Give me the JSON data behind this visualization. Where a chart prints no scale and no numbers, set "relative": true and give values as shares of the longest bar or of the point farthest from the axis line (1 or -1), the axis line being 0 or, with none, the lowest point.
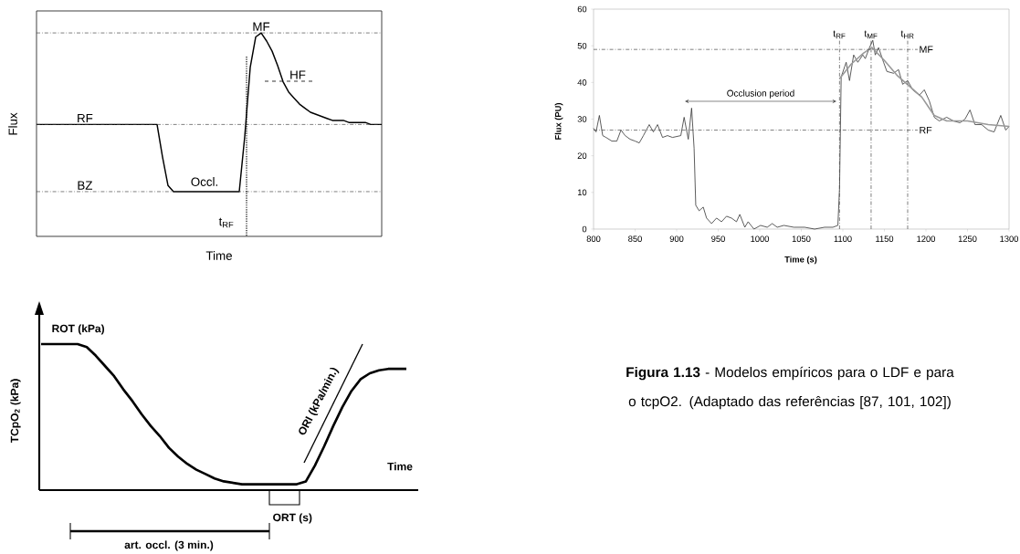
{
  "chart_data": [
    {
      "type": "line",
      "relative": true,
      "xlabel": "Time",
      "ylabel": "Flux",
      "categories": [
        null,
        null,
        null,
        null,
        null,
        null,
        null,
        null,
        null,
        null,
        null,
        null,
        null,
        null,
        null,
        null,
        null,
        null,
        null,
        null,
        null,
        null,
        null,
        null,
        null,
        null,
        null,
        null,
        null,
        null,
        null,
        null,
        null,
        null,
        null,
        null,
        null,
        null,
        null,
        null,
        null,
        null,
        null,
        null,
        null,
        null,
        null,
        null,
        null,
        null,
        null,
        null,
        null,
        null,
        null,
        null,
        null,
        null,
        null,
        null,
        null,
        null,
        null,
        null
      ],
      "series": [
        {
          "color": "#000000",
          "values": [
            0.55,
            0.55,
            0.55,
            0.55,
            0.55,
            0.55,
            0.55,
            0.55,
            0.55,
            0.55,
            0.55,
            0.55,
            0.55,
            0.55,
            0.55,
            0.55,
            0.55,
            0.55,
            0.55,
            0.55,
            0.55,
            0.55,
            0.55,
            0.39,
            0.25,
            0.22,
            0.22,
            0.22,
            0.22,
            0.22,
            0.22,
            0.22,
            0.22,
            0.22,
            0.22,
            0.22,
            0.22,
            0.22,
            0.49,
            0.83,
            0.98,
            1.0,
            0.96,
            0.91,
            0.84,
            0.76,
            0.71,
            0.68,
            0.65,
            0.63,
            0.61,
            0.6,
            0.59,
            0.58,
            0.57,
            0.57,
            0.57,
            0.56,
            0.56,
            0.56,
            0.56,
            0.55,
            0.55,
            0.55
          ]
        }
      ],
      "ref_lines": [
        {
          "axis": "y",
          "value": 1,
          "label": "MF",
          "line_style": "dashed"
        },
        {
          "axis": "y",
          "value": 0.55,
          "label": "RF",
          "line_style": "dashed"
        },
        {
          "axis": "y",
          "value": 0.22,
          "label": "BZ",
          "line_style": "dashed"
        }
      ],
      "annotations": [
        "Occl.",
        "HF",
        "t$_{RF}$"
      ]
    },
    {
      "type": "line",
      "xlabel": "Time (s)",
      "ylabel": "Flux (PU)",
      "xlim": [
        800,
        1300
      ],
      "ylim": [
        0,
        60
      ],
      "xticks": [
        800,
        850,
        900,
        950,
        1000,
        1050,
        1100,
        1150,
        1200,
        1250,
        1300
      ],
      "yticks": [
        0,
        10,
        20,
        30,
        40,
        50,
        60
      ],
      "series": [
        {
          "color": "#333333",
          "x": [
            800,
            803,
            807,
            811,
            815,
            822,
            828,
            833,
            838,
            844,
            850,
            855,
            860,
            867,
            872,
            877,
            883,
            889,
            895,
            905,
            909,
            914,
            918,
            921,
            923,
            927,
            932,
            936,
            942,
            948,
            954,
            960,
            966,
            972,
            976,
            982,
            986,
            993,
            1001,
            1009,
            1015,
            1021,
            1029,
            1041,
            1054,
            1066,
            1078,
            1088,
            1094,
            1096,
            1098,
            1104,
            1108,
            1113,
            1118,
            1124,
            1127,
            1132,
            1136,
            1139,
            1143,
            1149,
            1153,
            1161,
            1167,
            1172,
            1178,
            1184,
            1192,
            1198,
            1204,
            1210,
            1216,
            1225,
            1233,
            1241,
            1247,
            1253,
            1259,
            1267,
            1275,
            1282,
            1290,
            1296,
            1300
          ],
          "values": [
            27.5,
            26.5,
            31,
            25.5,
            25,
            24,
            24,
            27,
            25.5,
            24.5,
            24,
            23.5,
            25.5,
            28.5,
            26.5,
            28.5,
            25,
            25.5,
            25,
            25.5,
            30.5,
            24.5,
            33,
            22,
            6.5,
            5,
            6,
            3,
            1.5,
            3,
            2,
            3.5,
            3,
            2,
            4,
            0.5,
            2,
            0,
            1,
            0.5,
            1.5,
            0.5,
            1,
            0.5,
            0.5,
            0,
            0.5,
            0.5,
            1,
            11,
            41.5,
            45.5,
            40.5,
            47.5,
            45.5,
            47.5,
            46.5,
            49.5,
            51.5,
            47.5,
            49.5,
            45.5,
            43,
            42.5,
            43.5,
            39.5,
            40.5,
            38,
            36.5,
            38,
            35,
            30.5,
            29.5,
            30.5,
            29.5,
            29,
            30,
            32.5,
            28.5,
            28.5,
            27,
            26.5,
            31,
            27,
            28
          ]
        },
        {
          "color": "#999999",
          "x": [
            1096,
            1110,
            1125,
            1135,
            1150,
            1165,
            1180,
            1195,
            1210,
            1225,
            1250,
            1275,
            1300
          ],
          "values": [
            41,
            45,
            48,
            49.5,
            46,
            42,
            39,
            36,
            31,
            29.5,
            29.5,
            28.5,
            28
          ]
        }
      ],
      "ref_lines": [
        {
          "axis": "y",
          "value": 49,
          "label": "MF",
          "line_style": "dashed"
        },
        {
          "axis": "y",
          "value": 27,
          "label": "RF",
          "line_style": "dashed"
        },
        {
          "axis": "x",
          "value": 1096,
          "label": "t$_{RF}$",
          "line_style": "dashed"
        },
        {
          "axis": "x",
          "value": 1134,
          "label": "t$_{MF}$",
          "line_style": "dashed"
        },
        {
          "axis": "x",
          "value": 1178,
          "label": "t$_{HR}$",
          "line_style": "dashed"
        }
      ],
      "annotations": [
        "Occlusion period"
      ]
    },
    {
      "type": "line",
      "relative": true,
      "xlabel": "Time",
      "ylabel": "TCpO$_{2}$ (kPa)",
      "categories": [
        null,
        null,
        null,
        null,
        null,
        null,
        null,
        null,
        null,
        null,
        null,
        null,
        null,
        null,
        null,
        null,
        null,
        null,
        null,
        null,
        null,
        null,
        null,
        null,
        null,
        null,
        null,
        null,
        null,
        null,
        null,
        null,
        null,
        null,
        null,
        null,
        null,
        null,
        null,
        null,
        null
      ],
      "series": [
        {
          "color": "#000000",
          "values": [
            1,
            1,
            1,
            1,
            1,
            0.98,
            0.92,
            0.85,
            0.78,
            0.69,
            0.61,
            0.52,
            0.44,
            0.37,
            0.29,
            0.23,
            0.18,
            0.14,
            0.11,
            0.08,
            0.06,
            0.05,
            0.04,
            0.04,
            0.04,
            0.04,
            0.04,
            0.04,
            0.04,
            0.06,
            0.17,
            0.3,
            0.44,
            0.57,
            0.68,
            0.76,
            0.8,
            0.82,
            0.83,
            0.83,
            0.83
          ]
        }
      ],
      "annotations": [
        "ROT (kPa)",
        "ORI (kPa/min.)",
        "ORT (s)",
        "art. occl.  (3 min.)"
      ]
    },
    {
      "type": "other",
      "annotations": [
        "**Figura 1.13** - Modelos empíricos para o LDF e para o tcpO2. (Adaptado das referências [87, 101, 102])"
      ]
    }
  ]
}
